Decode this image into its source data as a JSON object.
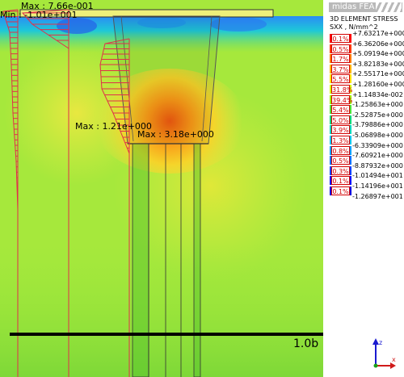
{
  "annotations": {
    "max_global": "Max : 7.66e-001",
    "min_global": "Min : -1.01e+001",
    "max_left": "Max : 1.21e+000",
    "max_mid": "Max : 3.18e+000"
  },
  "scale_label": "1.0b",
  "legend": {
    "brand": "midas FEA",
    "title_line1": "3D ELEMENT STRESS",
    "title_line2": "SXX , N/mm^2",
    "values": [
      "+7.63217e+000",
      "+6.36206e+000",
      "+5.09194e+000",
      "+3.82183e+000",
      "+2.55171e+000",
      "+1.28160e+000",
      "+1.14834e-002",
      "-1.25863e+000",
      "-2.52875e+000",
      "-3.79886e+000",
      "-5.06898e+000",
      "-6.33909e+000",
      "-7.60921e+000",
      "-8.87932e+000",
      "-1.01494e+001",
      "-1.14196e+001",
      "-1.26897e+001"
    ],
    "bins": [
      {
        "pct": "0.1%",
        "color": "#ff0000"
      },
      {
        "pct": "0.5%",
        "color": "#ff3a00"
      },
      {
        "pct": "1.7%",
        "color": "#ff7a00"
      },
      {
        "pct": "3.7%",
        "color": "#ffb400"
      },
      {
        "pct": "5.5%",
        "color": "#ffe400"
      },
      {
        "pct": "31.8%",
        "color": "#d4ff00"
      },
      {
        "pct": "39.4%",
        "color": "#9cf000"
      },
      {
        "pct": "5.4%",
        "color": "#4ee43a"
      },
      {
        "pct": "5.0%",
        "color": "#00d87a"
      },
      {
        "pct": "3.9%",
        "color": "#00d8bc"
      },
      {
        "pct": "1.3%",
        "color": "#00c8ee"
      },
      {
        "pct": "0.8%",
        "color": "#00a0ff"
      },
      {
        "pct": "0.5%",
        "color": "#0070ff"
      },
      {
        "pct": "0.3%",
        "color": "#0040ff"
      },
      {
        "pct": "0.1%",
        "color": "#0010ff"
      },
      {
        "pct": "0.1%",
        "color": "#0000e0"
      }
    ]
  },
  "axis_labels": {
    "z": "z",
    "x": "x"
  },
  "colors": {
    "profile_line": "#e0304a",
    "section_line": "#000000"
  }
}
